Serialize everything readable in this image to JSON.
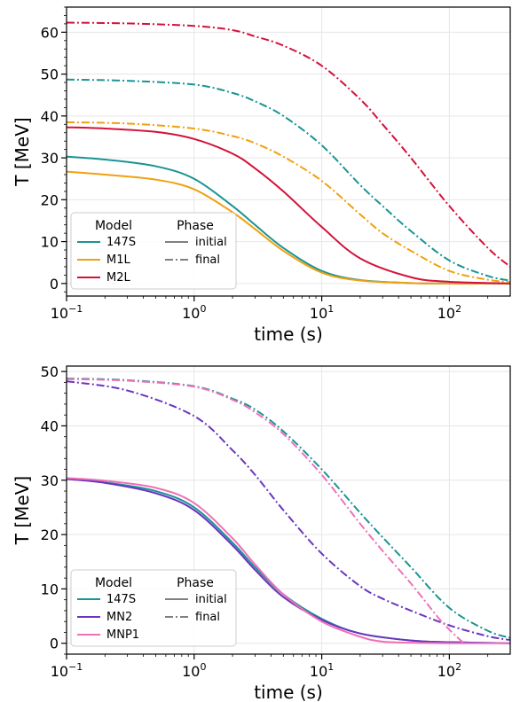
{
  "chart_data": [
    {
      "type": "line",
      "xscale": "log",
      "xlabel": "time (s)",
      "ylabel": "T [MeV]",
      "xlim": [
        0.1,
        300
      ],
      "ylim": [
        -3,
        66
      ],
      "yticks": [
        0,
        10,
        20,
        30,
        40,
        50,
        60
      ],
      "xticks": [
        {
          "v": 0.1,
          "base": "10",
          "exp": "−1"
        },
        {
          "v": 1,
          "base": "10",
          "exp": "0"
        },
        {
          "v": 10,
          "base": "10",
          "exp": "1"
        },
        {
          "v": 100,
          "base": "10",
          "exp": "2"
        }
      ],
      "grid": true,
      "legend": {
        "position": "lower-left",
        "model_title": "Model",
        "phase_title": "Phase",
        "phase_entries": [
          {
            "label": "initial",
            "style": "solid"
          },
          {
            "label": "final",
            "style": "dashdot"
          }
        ]
      },
      "series": [
        {
          "name": "147S",
          "phase": "initial",
          "color": "#1a9494",
          "style": "solid",
          "x": [
            0.1,
            0.2,
            0.5,
            1,
            2,
            3,
            5,
            10,
            20,
            50,
            100,
            300
          ],
          "y": [
            30.3,
            29.6,
            28.0,
            25.0,
            18.5,
            14.0,
            8.5,
            3.0,
            0.8,
            0.1,
            0.0,
            0.0
          ]
        },
        {
          "name": "M1L",
          "phase": "initial",
          "color": "#f0a010",
          "style": "solid",
          "x": [
            0.1,
            0.2,
            0.5,
            1,
            2,
            3,
            5,
            10,
            20,
            50,
            100,
            300
          ],
          "y": [
            26.7,
            26.0,
            24.8,
            22.5,
            17.0,
            13.0,
            7.8,
            2.6,
            0.7,
            0.1,
            0.0,
            0.0
          ]
        },
        {
          "name": "M2L",
          "phase": "initial",
          "color": "#d3123a",
          "style": "solid",
          "x": [
            0.1,
            0.2,
            0.5,
            1,
            2,
            3,
            5,
            10,
            20,
            50,
            100,
            300
          ],
          "y": [
            37.3,
            37.0,
            36.2,
            34.5,
            31.0,
            27.5,
            22.0,
            13.5,
            6.0,
            1.5,
            0.4,
            0.0
          ]
        },
        {
          "name": "147S",
          "phase": "final",
          "color": "#1a9494",
          "style": "dashdot",
          "x": [
            0.1,
            0.3,
            1,
            2,
            3,
            5,
            10,
            20,
            30,
            50,
            100,
            200,
            300
          ],
          "y": [
            48.7,
            48.4,
            47.5,
            45.5,
            43.5,
            40.0,
            33.0,
            23.5,
            18.5,
            12.5,
            5.5,
            1.8,
            0.7
          ]
        },
        {
          "name": "M1L",
          "phase": "final",
          "color": "#f0a010",
          "style": "dashdot",
          "x": [
            0.1,
            0.3,
            1,
            2,
            3,
            5,
            10,
            20,
            30,
            50,
            100,
            200,
            300
          ],
          "y": [
            38.5,
            38.2,
            37.0,
            35.2,
            33.5,
            30.3,
            24.5,
            16.5,
            12.0,
            7.8,
            3.0,
            0.9,
            0.3
          ]
        },
        {
          "name": "M2L",
          "phase": "final",
          "color": "#d3123a",
          "style": "dashdot",
          "x": [
            0.1,
            0.3,
            1,
            2,
            3,
            5,
            10,
            20,
            30,
            50,
            100,
            200,
            300
          ],
          "y": [
            62.3,
            62.1,
            61.5,
            60.5,
            59.0,
            56.8,
            52.0,
            44.0,
            38.0,
            30.0,
            18.5,
            8.5,
            4.0
          ]
        }
      ]
    },
    {
      "type": "line",
      "xscale": "log",
      "xlabel": "time (s)",
      "ylabel": "T [MeV]",
      "xlim": [
        0.1,
        300
      ],
      "ylim": [
        -2,
        51
      ],
      "yticks": [
        0,
        10,
        20,
        30,
        40,
        50
      ],
      "xticks": [
        {
          "v": 0.1,
          "base": "10",
          "exp": "−1"
        },
        {
          "v": 1,
          "base": "10",
          "exp": "0"
        },
        {
          "v": 10,
          "base": "10",
          "exp": "1"
        },
        {
          "v": 100,
          "base": "10",
          "exp": "2"
        }
      ],
      "grid": true,
      "legend": {
        "position": "lower-left",
        "model_title": "Model",
        "phase_title": "Phase",
        "phase_entries": [
          {
            "label": "initial",
            "style": "solid"
          },
          {
            "label": "final",
            "style": "dashdot"
          }
        ]
      },
      "series": [
        {
          "name": "147S",
          "phase": "initial",
          "color": "#1a9494",
          "style": "solid",
          "x": [
            0.1,
            0.2,
            0.5,
            1,
            2,
            3,
            5,
            10,
            20,
            50,
            100,
            300
          ],
          "y": [
            30.3,
            29.6,
            28.0,
            25.0,
            18.5,
            14.0,
            9.0,
            4.5,
            1.8,
            0.5,
            0.2,
            0.0
          ]
        },
        {
          "name": "MN2",
          "phase": "initial",
          "color": "#6a35c0",
          "style": "solid",
          "x": [
            0.1,
            0.2,
            0.5,
            1,
            2,
            3,
            5,
            10,
            20,
            50,
            100,
            300
          ],
          "y": [
            30.2,
            29.5,
            27.6,
            24.5,
            18.0,
            13.5,
            8.5,
            4.3,
            1.8,
            0.5,
            0.2,
            0.0
          ]
        },
        {
          "name": "MNP1",
          "phase": "initial",
          "color": "#f070b8",
          "style": "solid",
          "x": [
            0.1,
            0.2,
            0.5,
            1,
            2,
            3,
            5,
            10,
            20,
            30,
            50,
            100,
            300
          ],
          "y": [
            30.4,
            29.9,
            28.6,
            25.8,
            19.3,
            14.5,
            9.0,
            4.0,
            1.2,
            0.3,
            0.1,
            0.0,
            0.0
          ]
        },
        {
          "name": "147S",
          "phase": "final",
          "color": "#1a9494",
          "style": "dashdot",
          "x": [
            0.1,
            0.3,
            1,
            2,
            3,
            5,
            10,
            20,
            30,
            50,
            100,
            200,
            300
          ],
          "y": [
            48.7,
            48.4,
            47.3,
            45.0,
            43.0,
            39.0,
            32.0,
            24.0,
            19.5,
            14.0,
            6.5,
            2.3,
            1.0
          ]
        },
        {
          "name": "MN2",
          "phase": "final",
          "color": "#6a35c0",
          "style": "dashdot",
          "x": [
            0.1,
            0.3,
            1,
            2,
            3,
            5,
            10,
            20,
            30,
            50,
            100,
            200,
            300
          ],
          "y": [
            48.2,
            46.5,
            41.8,
            35.5,
            31.0,
            24.5,
            16.5,
            10.5,
            8.2,
            6.0,
            3.3,
            1.3,
            0.6
          ]
        },
        {
          "name": "MNP1",
          "phase": "final",
          "color": "#f070b8",
          "style": "dashdot",
          "x": [
            0.1,
            0.3,
            1,
            2,
            3,
            5,
            10,
            20,
            30,
            50,
            80,
            100,
            130
          ],
          "y": [
            48.6,
            48.3,
            47.2,
            44.8,
            42.5,
            38.5,
            31.0,
            22.0,
            17.0,
            11.0,
            5.0,
            2.5,
            0.0
          ]
        }
      ]
    }
  ]
}
